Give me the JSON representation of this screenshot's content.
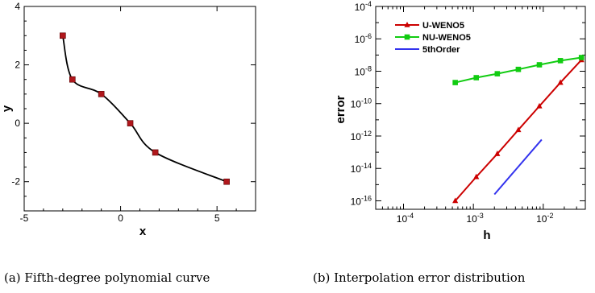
{
  "chart_data": [
    {
      "type": "line",
      "xlabel": "x",
      "ylabel": "y",
      "xlim": [
        -5,
        7
      ],
      "ylim": [
        -3,
        4
      ],
      "xticks": [
        -5,
        0,
        5
      ],
      "yticks": [
        -2,
        0,
        2,
        4
      ],
      "series": [
        {
          "values": [
            [
              -3,
              3
            ],
            [
              -2.5,
              1.5
            ],
            [
              -1,
              1
            ],
            [
              0.5,
              0
            ],
            [
              1.8,
              -1
            ],
            [
              5.5,
              -2
            ]
          ],
          "color": "#000000",
          "marker": "square",
          "marker_color": "#b0171c"
        }
      ],
      "caption": "(a) Fifth-degree polynomial curve"
    },
    {
      "type": "line",
      "xlabel": "h",
      "ylabel": "error",
      "x_scale": "log",
      "y_scale": "log",
      "xlim": [
        4e-05,
        0.04
      ],
      "ylim": [
        3e-17,
        0.0001
      ],
      "xtick_exponents": [
        -4,
        -3,
        -2
      ],
      "ytick_exponents": [
        -16,
        -14,
        -12,
        -10,
        -8,
        -6,
        -4
      ],
      "legend_position": "top-left",
      "series": [
        {
          "name": "U-WENO5",
          "color": "#cc0000",
          "marker": "triangle",
          "values": [
            [
              0.00055,
              1e-16
            ],
            [
              0.0011,
              3e-15
            ],
            [
              0.0022,
              8e-14
            ],
            [
              0.0044,
              2.4e-12
            ],
            [
              0.0088,
              7e-11
            ],
            [
              0.0176,
              2e-09
            ],
            [
              0.0352,
              5e-08
            ]
          ]
        },
        {
          "name": "NU-WENO5",
          "color": "#11cc11",
          "marker": "square",
          "values": [
            [
              0.00055,
              2e-09
            ],
            [
              0.0011,
              4e-09
            ],
            [
              0.0022,
              7e-09
            ],
            [
              0.0044,
              1.3e-08
            ],
            [
              0.0088,
              2.5e-08
            ],
            [
              0.0176,
              4.5e-08
            ],
            [
              0.0352,
              7e-08
            ]
          ]
        },
        {
          "name": "5thOrder",
          "color": "#3333ee",
          "marker": "none",
          "values": [
            [
              0.002,
              2.5e-16
            ],
            [
              0.0095,
              6e-13
            ]
          ]
        }
      ],
      "caption": "(b) Interpolation error distribution"
    }
  ]
}
